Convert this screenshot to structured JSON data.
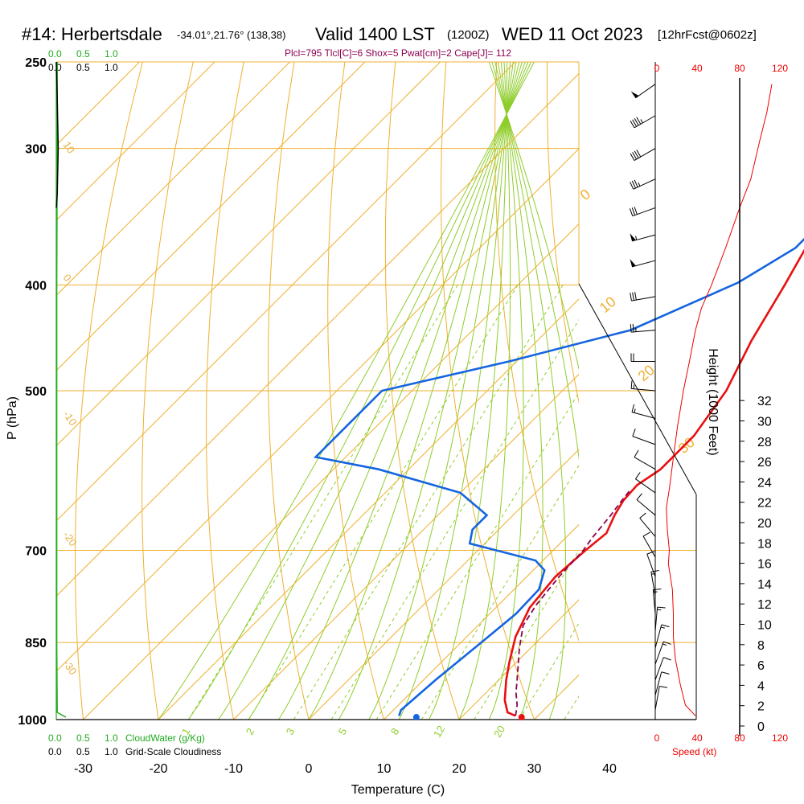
{
  "title": {
    "station": "#14: Herbertsdale",
    "location": "-34.01°,21.76° (138,38)",
    "valid": "Valid 1400 LST",
    "zulu": "(1200Z)",
    "date": "WED 11 Oct 2023",
    "forecast": "[12hrFcst@0602z]"
  },
  "subtitle": "Plcl=795 Tlcl[C]=6 Shox=5 Pwat[cm]=2 Cape[J]= 112",
  "chart_data": {
    "type": "line",
    "xlabel": "Temperature (C)",
    "ylabel": "P (hPa)",
    "right_axis_label": "Height (1000 Feet)",
    "xlim": [
      -35,
      45
    ],
    "ylim": [
      1000,
      250
    ],
    "x_ticks": [
      "-30",
      "-20",
      "-10",
      "0",
      "10",
      "20",
      "30",
      "40"
    ],
    "pressure_labels": [
      "250",
      "300",
      "400",
      "500",
      "700",
      "850",
      "1000"
    ],
    "height_ticks": [
      "0",
      "2",
      "4",
      "6",
      "8",
      "10",
      "12",
      "14",
      "16",
      "18",
      "20",
      "22",
      "24",
      "26",
      "28",
      "30",
      "32"
    ],
    "speed_ticks": [
      "0",
      "40",
      "80",
      "120"
    ],
    "speed_label": "Speed (kt)",
    "cloud_ticks": [
      "0.0",
      "0.5",
      "1.0"
    ],
    "cloudwater_label": "CloudWater (g/Kg)",
    "cloudiness_label": "Grid-Scale Cloudiness",
    "mixing_ratio_labels": [
      "1",
      "2",
      "3",
      "5",
      "8",
      "12",
      "20"
    ],
    "theta_labels": [
      "10",
      "0",
      "-10",
      "-20",
      "-30"
    ],
    "thetae_labels": [
      "0",
      "10",
      "20",
      "30"
    ],
    "series": [
      {
        "name": "Temperature",
        "color": "#e81010",
        "points": [
          [
            27,
            992
          ],
          [
            25.5,
            985
          ],
          [
            23.5,
            960
          ],
          [
            21,
            920
          ],
          [
            19,
            885
          ],
          [
            16.5,
            840
          ],
          [
            14.5,
            790
          ],
          [
            13.8,
            740
          ],
          [
            14.3,
            700
          ],
          [
            14.8,
            675
          ],
          [
            13.5,
            650
          ],
          [
            12.7,
            630
          ],
          [
            12.5,
            610
          ],
          [
            13.5,
            590
          ],
          [
            13.5,
            550
          ],
          [
            11.8,
            500
          ],
          [
            8.5,
            450
          ],
          [
            5.5,
            400
          ],
          [
            3,
            365
          ],
          [
            1,
            330
          ],
          [
            -1.5,
            300
          ],
          [
            -4,
            275
          ],
          [
            -5.5,
            262
          ]
        ]
      },
      {
        "name": "Dewpoint",
        "color": "#1565e0",
        "points": [
          [
            11.5,
            992
          ],
          [
            11,
            980
          ],
          [
            11.6,
            920
          ],
          [
            12.7,
            850
          ],
          [
            13.5,
            800
          ],
          [
            13.3,
            760
          ],
          [
            11.5,
            730
          ],
          [
            9,
            715
          ],
          [
            -2,
            690
          ],
          [
            -3.5,
            670
          ],
          [
            -3.5,
            650
          ],
          [
            -10,
            620
          ],
          [
            -24,
            590
          ],
          [
            -34,
            575
          ],
          [
            -34,
            500
          ],
          [
            -21,
            470
          ],
          [
            -9,
            440
          ],
          [
            -1,
            398
          ],
          [
            2,
            370
          ],
          [
            2,
            355
          ],
          [
            1,
            340
          ],
          [
            -1,
            320
          ],
          [
            -3,
            300
          ],
          [
            -5.5,
            275
          ],
          [
            -7.5,
            262
          ]
        ]
      },
      {
        "name": "Parcel",
        "color": "#8b0050",
        "points": [
          [
            27,
            992
          ],
          [
            25.8,
            970
          ],
          [
            24,
            945
          ],
          [
            21.5,
            905
          ],
          [
            18.5,
            860
          ],
          [
            16,
            820
          ],
          [
            15,
            785
          ],
          [
            14.3,
            740
          ],
          [
            14,
            700
          ],
          [
            13.5,
            680
          ],
          [
            13,
            650
          ],
          [
            12.5,
            630
          ],
          [
            12.2,
            615
          ]
        ]
      }
    ],
    "surface_points": [
      {
        "name": "surface-temperature",
        "x": 28,
        "p": 995,
        "color": "#ee1111"
      },
      {
        "name": "surface-dewpoint",
        "x": 14,
        "p": 995,
        "color": "#1565e0"
      }
    ],
    "wind_speed_profile": [
      [
        40,
        992
      ],
      [
        30,
        970
      ],
      [
        25,
        930
      ],
      [
        20,
        880
      ],
      [
        18,
        840
      ],
      [
        18,
        800
      ],
      [
        17,
        760
      ],
      [
        13,
        720
      ],
      [
        14,
        700
      ],
      [
        12,
        670
      ],
      [
        11,
        640
      ],
      [
        14,
        615
      ],
      [
        17,
        585
      ],
      [
        22,
        540
      ],
      [
        28,
        500
      ],
      [
        34,
        470
      ],
      [
        40,
        440
      ],
      [
        46,
        420
      ],
      [
        56,
        400
      ],
      [
        70,
        370
      ],
      [
        84,
        340
      ],
      [
        95,
        320
      ],
      [
        104,
        295
      ],
      [
        111,
        278
      ],
      [
        116,
        262
      ]
    ],
    "wind_barbs": [
      {
        "p": 262,
        "dir": 235,
        "speed": 50
      },
      {
        "p": 280,
        "dir": 240,
        "speed": 45
      },
      {
        "p": 300,
        "dir": 240,
        "speed": 40
      },
      {
        "p": 320,
        "dir": 245,
        "speed": 35
      },
      {
        "p": 340,
        "dir": 250,
        "speed": 30
      },
      {
        "p": 360,
        "dir": 255,
        "speed": 55
      },
      {
        "p": 380,
        "dir": 255,
        "speed": 50
      },
      {
        "p": 410,
        "dir": 260,
        "speed": 30
      },
      {
        "p": 440,
        "dir": 265,
        "speed": 25
      },
      {
        "p": 470,
        "dir": 270,
        "speed": 20
      },
      {
        "p": 500,
        "dir": 275,
        "speed": 15
      },
      {
        "p": 530,
        "dir": 285,
        "speed": 15
      },
      {
        "p": 560,
        "dir": 290,
        "speed": 12
      },
      {
        "p": 590,
        "dir": 300,
        "speed": 10
      },
      {
        "p": 620,
        "dir": 305,
        "speed": 10
      },
      {
        "p": 650,
        "dir": 310,
        "speed": 10
      },
      {
        "p": 680,
        "dir": 320,
        "speed": 10
      },
      {
        "p": 710,
        "dir": 330,
        "speed": 10
      },
      {
        "p": 740,
        "dir": 340,
        "speed": 10
      },
      {
        "p": 770,
        "dir": 350,
        "speed": 15
      },
      {
        "p": 800,
        "dir": 355,
        "speed": 15
      },
      {
        "p": 830,
        "dir": 5,
        "speed": 15
      },
      {
        "p": 860,
        "dir": 15,
        "speed": 15
      },
      {
        "p": 890,
        "dir": 20,
        "speed": 15
      },
      {
        "p": 920,
        "dir": 20,
        "speed": 12
      },
      {
        "p": 950,
        "dir": 15,
        "speed": 10
      },
      {
        "p": 980,
        "dir": 10,
        "speed": 10
      }
    ],
    "cloudwater_profile": [
      [
        0.02,
        250
      ],
      [
        0.02,
        300
      ],
      [
        0.01,
        400
      ],
      [
        0.01,
        500
      ],
      [
        0.01,
        700
      ],
      [
        0.01,
        850
      ],
      [
        0.02,
        985
      ],
      [
        0.2,
        995
      ]
    ],
    "cloudiness_profile": [
      [
        0.0,
        250
      ],
      [
        0.02,
        270
      ],
      [
        0.04,
        300
      ],
      [
        0.02,
        330
      ],
      [
        0.0,
        340
      ]
    ],
    "legend_colors": {
      "temperature": "#e81010",
      "dewpoint": "#1565e0",
      "parcel": "#8b0050",
      "isotherm": "#f0b030",
      "dry_adiabat": "#8fcd2a",
      "mixing_ratio": "#8fcd2a",
      "speed": "#ee0000",
      "cloudwater": "#22aa22"
    }
  }
}
